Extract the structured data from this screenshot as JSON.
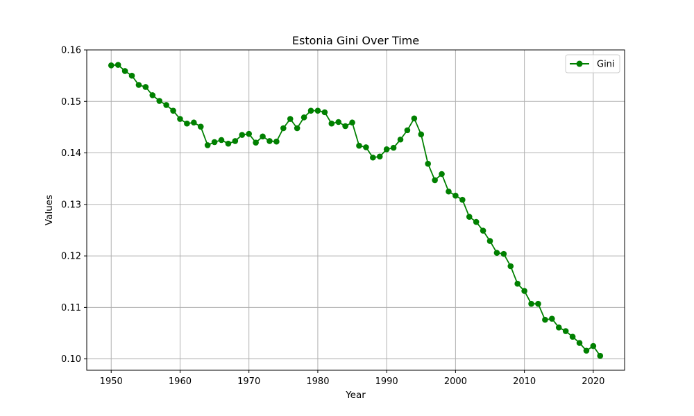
{
  "chart_data": {
    "type": "line",
    "title": "Estonia Gini Over Time",
    "xlabel": "Year",
    "ylabel": "Values",
    "xlim": [
      1946.45,
      2024.55
    ],
    "ylim": [
      0.0978,
      0.16
    ],
    "x_ticks": [
      1950,
      1960,
      1970,
      1980,
      1990,
      2000,
      2010,
      2020
    ],
    "y_ticks": [
      0.1,
      0.11,
      0.12,
      0.13,
      0.14,
      0.15,
      0.16
    ],
    "y_tick_labels": [
      "0.10",
      "0.11",
      "0.12",
      "0.13",
      "0.14",
      "0.15",
      "0.16"
    ],
    "grid": true,
    "legend_position": "top-right",
    "x": [
      1950,
      1951,
      1952,
      1953,
      1954,
      1955,
      1956,
      1957,
      1958,
      1959,
      1960,
      1961,
      1962,
      1963,
      1964,
      1965,
      1966,
      1967,
      1968,
      1969,
      1970,
      1971,
      1972,
      1973,
      1974,
      1975,
      1976,
      1977,
      1978,
      1979,
      1980,
      1981,
      1982,
      1983,
      1984,
      1985,
      1986,
      1987,
      1988,
      1989,
      1990,
      1991,
      1992,
      1993,
      1994,
      1995,
      1996,
      1997,
      1998,
      1999,
      2000,
      2001,
      2002,
      2003,
      2004,
      2005,
      2006,
      2007,
      2008,
      2009,
      2010,
      2011,
      2012,
      2013,
      2014,
      2015,
      2016,
      2017,
      2018,
      2019,
      2020,
      2021
    ],
    "series": [
      {
        "name": "Gini",
        "color": "#008000",
        "marker": "circle",
        "values": [
          0.157,
          0.1571,
          0.1559,
          0.155,
          0.1532,
          0.1528,
          0.1512,
          0.1501,
          0.1493,
          0.1482,
          0.1466,
          0.1457,
          0.1459,
          0.1451,
          0.1415,
          0.1421,
          0.1425,
          0.1418,
          0.1423,
          0.1435,
          0.1437,
          0.142,
          0.1432,
          0.1423,
          0.1422,
          0.1448,
          0.1466,
          0.1448,
          0.1469,
          0.1482,
          0.1482,
          0.1479,
          0.1457,
          0.146,
          0.1452,
          0.1459,
          0.1414,
          0.1411,
          0.1391,
          0.1393,
          0.1407,
          0.141,
          0.1426,
          0.1444,
          0.1467,
          0.1436,
          0.1379,
          0.1347,
          0.1359,
          0.1325,
          0.1317,
          0.1309,
          0.1276,
          0.1266,
          0.1249,
          0.1229,
          0.1206,
          0.1204,
          0.118,
          0.1146,
          0.1132,
          0.1107,
          0.1107,
          0.1076,
          0.1078,
          0.1061,
          0.1054,
          0.1043,
          0.1031,
          0.1016,
          0.1025,
          0.1006
        ]
      }
    ]
  }
}
